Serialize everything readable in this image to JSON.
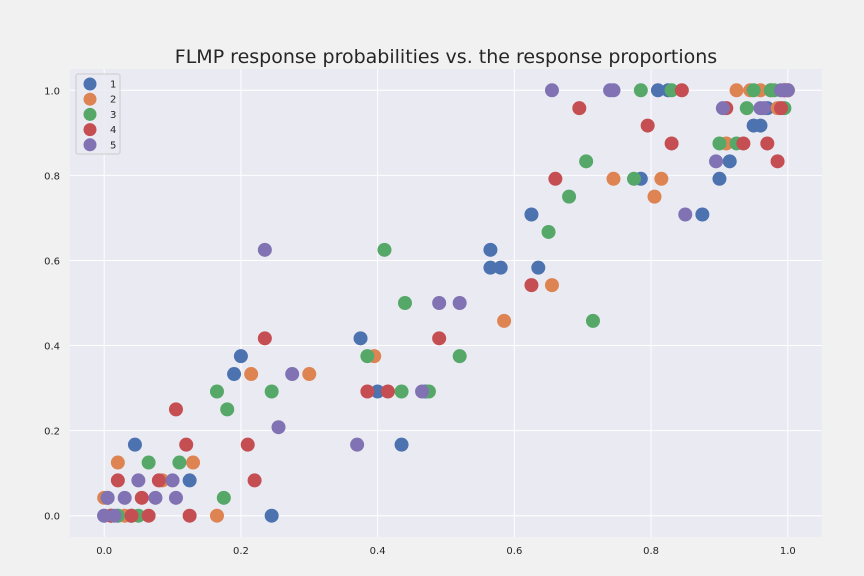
{
  "chart_data": {
    "type": "scatter",
    "title": "FLMP response probabilities vs. the response proportions",
    "xlabel": "",
    "ylabel": "",
    "xlim": [
      -0.05,
      1.05
    ],
    "ylim": [
      -0.05,
      1.05
    ],
    "xticks": [
      "0.0",
      "0.2",
      "0.4",
      "0.6",
      "0.8",
      "1.0"
    ],
    "yticks": [
      "0.0",
      "0.2",
      "0.4",
      "0.6",
      "0.8",
      "1.0"
    ],
    "grid": true,
    "legend_position": "top-left",
    "series": [
      {
        "name": "1",
        "color": "#4c72b0",
        "points": [
          [
            0.0,
            0.0
          ],
          [
            0.01,
            0.0
          ],
          [
            0.02,
            0.0
          ],
          [
            0.04,
            0.0
          ],
          [
            0.045,
            0.167
          ],
          [
            0.125,
            0.083
          ],
          [
            0.19,
            0.333
          ],
          [
            0.2,
            0.375
          ],
          [
            0.245,
            0.0
          ],
          [
            0.375,
            0.417
          ],
          [
            0.4,
            0.292
          ],
          [
            0.435,
            0.167
          ],
          [
            0.47,
            0.292
          ],
          [
            0.565,
            0.583
          ],
          [
            0.565,
            0.625
          ],
          [
            0.58,
            0.583
          ],
          [
            0.625,
            0.708
          ],
          [
            0.635,
            0.583
          ],
          [
            0.785,
            0.792
          ],
          [
            0.81,
            1.0
          ],
          [
            0.825,
            1.0
          ],
          [
            0.875,
            0.708
          ],
          [
            0.9,
            0.792
          ],
          [
            0.915,
            0.833
          ],
          [
            0.95,
            0.917
          ],
          [
            0.96,
            0.917
          ],
          [
            0.97,
            0.958
          ],
          [
            0.995,
            1.0
          ],
          [
            1.0,
            1.0
          ]
        ]
      },
      {
        "name": "2",
        "color": "#dd8452",
        "points": [
          [
            0.0,
            0.042
          ],
          [
            0.01,
            0.0
          ],
          [
            0.02,
            0.125
          ],
          [
            0.03,
            0.0
          ],
          [
            0.085,
            0.083
          ],
          [
            0.13,
            0.125
          ],
          [
            0.165,
            0.0
          ],
          [
            0.215,
            0.333
          ],
          [
            0.3,
            0.333
          ],
          [
            0.395,
            0.375
          ],
          [
            0.585,
            0.458
          ],
          [
            0.655,
            0.542
          ],
          [
            0.745,
            0.792
          ],
          [
            0.805,
            0.75
          ],
          [
            0.815,
            0.792
          ],
          [
            0.91,
            0.875
          ],
          [
            0.925,
            1.0
          ],
          [
            0.945,
            1.0
          ],
          [
            0.96,
            1.0
          ],
          [
            0.975,
            1.0
          ],
          [
            0.985,
            0.958
          ],
          [
            1.0,
            1.0
          ]
        ]
      },
      {
        "name": "3",
        "color": "#55a868",
        "points": [
          [
            0.005,
            0.042
          ],
          [
            0.02,
            0.0
          ],
          [
            0.05,
            0.0
          ],
          [
            0.065,
            0.125
          ],
          [
            0.11,
            0.125
          ],
          [
            0.165,
            0.292
          ],
          [
            0.175,
            0.042
          ],
          [
            0.18,
            0.25
          ],
          [
            0.245,
            0.292
          ],
          [
            0.385,
            0.375
          ],
          [
            0.41,
            0.625
          ],
          [
            0.435,
            0.292
          ],
          [
            0.44,
            0.5
          ],
          [
            0.475,
            0.292
          ],
          [
            0.52,
            0.375
          ],
          [
            0.65,
            0.667
          ],
          [
            0.68,
            0.75
          ],
          [
            0.705,
            0.833
          ],
          [
            0.715,
            0.458
          ],
          [
            0.775,
            0.792
          ],
          [
            0.785,
            1.0
          ],
          [
            0.83,
            1.0
          ],
          [
            0.9,
            0.875
          ],
          [
            0.925,
            0.875
          ],
          [
            0.94,
            0.958
          ],
          [
            0.95,
            1.0
          ],
          [
            0.975,
            1.0
          ],
          [
            0.98,
            1.0
          ],
          [
            0.995,
            0.958
          ]
        ]
      },
      {
        "name": "4",
        "color": "#c44e52",
        "points": [
          [
            0.01,
            0.0
          ],
          [
            0.02,
            0.083
          ],
          [
            0.04,
            0.0
          ],
          [
            0.055,
            0.042
          ],
          [
            0.065,
            0.0
          ],
          [
            0.08,
            0.083
          ],
          [
            0.105,
            0.25
          ],
          [
            0.12,
            0.167
          ],
          [
            0.125,
            0.0
          ],
          [
            0.21,
            0.167
          ],
          [
            0.22,
            0.083
          ],
          [
            0.235,
            0.417
          ],
          [
            0.385,
            0.292
          ],
          [
            0.415,
            0.292
          ],
          [
            0.49,
            0.417
          ],
          [
            0.625,
            0.542
          ],
          [
            0.66,
            0.792
          ],
          [
            0.695,
            0.958
          ],
          [
            0.795,
            0.917
          ],
          [
            0.83,
            0.875
          ],
          [
            0.845,
            1.0
          ],
          [
            0.91,
            0.958
          ],
          [
            0.935,
            0.875
          ],
          [
            0.97,
            0.875
          ],
          [
            0.985,
            0.833
          ],
          [
            0.99,
            0.958
          ],
          [
            0.995,
            1.0
          ]
        ]
      },
      {
        "name": "5",
        "color": "#8172b3",
        "points": [
          [
            0.0,
            0.0
          ],
          [
            0.005,
            0.042
          ],
          [
            0.015,
            0.0
          ],
          [
            0.03,
            0.042
          ],
          [
            0.05,
            0.083
          ],
          [
            0.075,
            0.042
          ],
          [
            0.1,
            0.083
          ],
          [
            0.105,
            0.042
          ],
          [
            0.235,
            0.625
          ],
          [
            0.255,
            0.208
          ],
          [
            0.275,
            0.333
          ],
          [
            0.37,
            0.167
          ],
          [
            0.465,
            0.292
          ],
          [
            0.49,
            0.5
          ],
          [
            0.52,
            0.5
          ],
          [
            0.655,
            1.0
          ],
          [
            0.74,
            1.0
          ],
          [
            0.745,
            1.0
          ],
          [
            0.85,
            0.708
          ],
          [
            0.895,
            0.833
          ],
          [
            0.905,
            0.958
          ],
          [
            0.96,
            0.958
          ],
          [
            0.965,
            0.958
          ],
          [
            0.99,
            1.0
          ],
          [
            1.0,
            1.0
          ]
        ]
      }
    ]
  }
}
